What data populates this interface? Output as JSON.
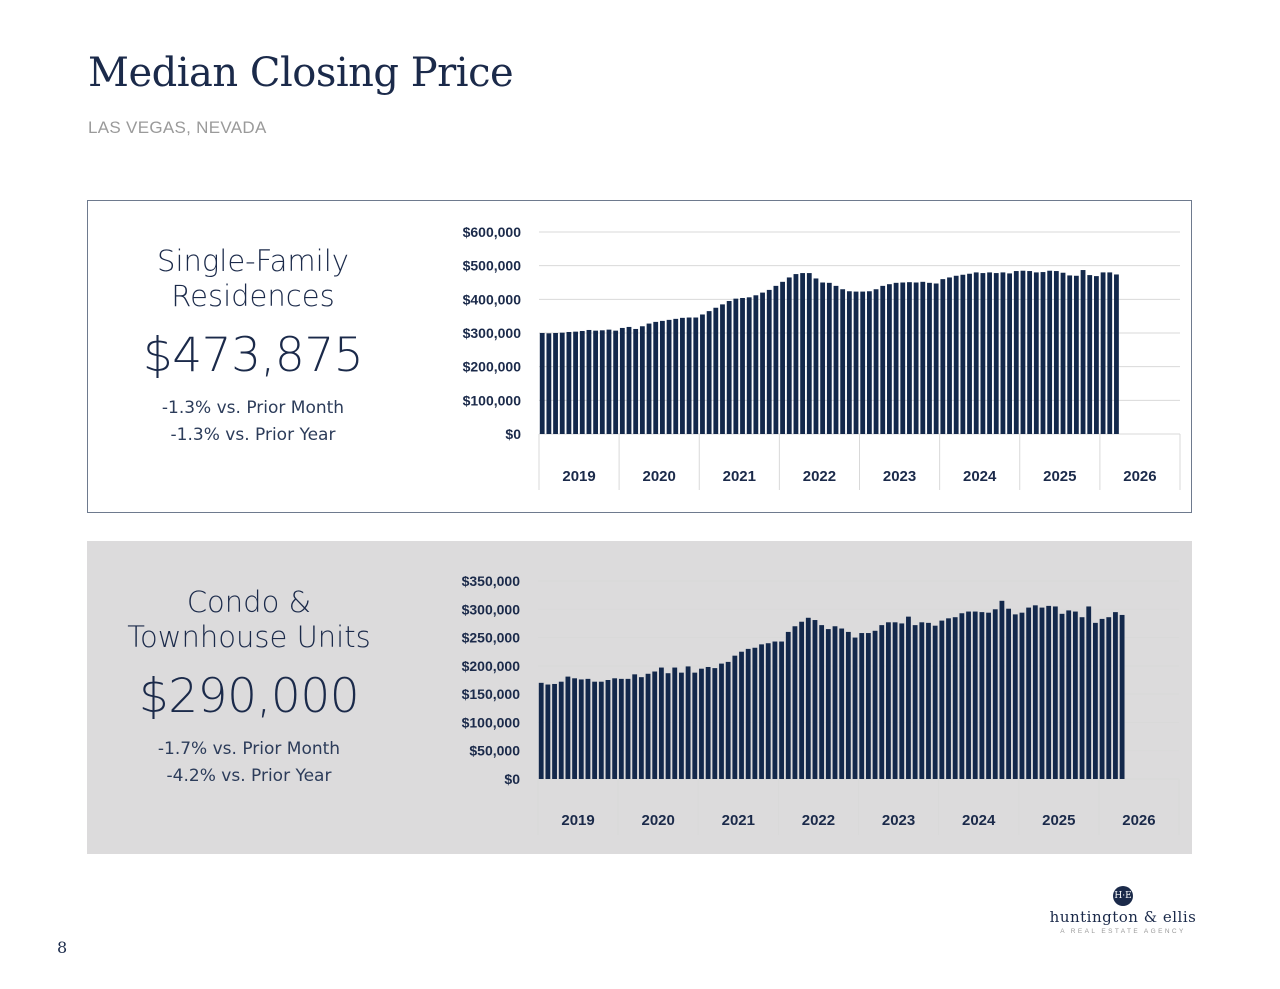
{
  "page": {
    "title": "Median Closing Price",
    "subtitle": "LAS VEGAS, NEVADA",
    "page_number": "8"
  },
  "logo": {
    "mark": "H·E",
    "name": "huntington & ellis",
    "tagline": "A REAL ESTATE AGENCY"
  },
  "colors": {
    "bar": "#13284b",
    "grid": "#d9d9d9",
    "navy": "#1b2a4a",
    "panel2_bg": "#dcdbdc"
  },
  "single_family": {
    "title_line1": "Single-Family",
    "title_line2": "Residences",
    "value": "$473,875",
    "change_month": "-1.3% vs. Prior Month",
    "change_year": "-1.3% vs. Prior Year"
  },
  "condo": {
    "title_line1": "Condo &",
    "title_line2": "Townhouse Units",
    "value": "$290,000",
    "change_month": "-1.7% vs. Prior Month",
    "change_year": "-4.2% vs. Prior Year"
  },
  "chart_data": [
    {
      "type": "bar",
      "name": "Single-Family Residences",
      "categories_years": [
        "2019",
        "2020",
        "2021",
        "2022",
        "2023",
        "2024",
        "2025",
        "2026"
      ],
      "x_start": "2019-01",
      "ylim": [
        0,
        600000
      ],
      "ticks": [
        "$0",
        "$100,000",
        "$200,000",
        "$300,000",
        "$400,000",
        "$500,000",
        "$600,000"
      ],
      "grid": true,
      "values": [
        300000,
        299000,
        300000,
        301000,
        303000,
        304000,
        306000,
        309000,
        307000,
        308000,
        310000,
        307000,
        315000,
        318000,
        312000,
        320000,
        328000,
        333000,
        336000,
        339000,
        342000,
        345000,
        346000,
        346000,
        355000,
        365000,
        375000,
        385000,
        395000,
        402000,
        404000,
        406000,
        412000,
        420000,
        428000,
        440000,
        452000,
        465000,
        475000,
        478000,
        478000,
        462000,
        450000,
        449000,
        440000,
        430000,
        424000,
        423000,
        423000,
        424000,
        430000,
        440000,
        445000,
        449000,
        450000,
        451000,
        450000,
        452000,
        449000,
        447000,
        460000,
        465000,
        470000,
        473000,
        476000,
        480000,
        478000,
        480000,
        478000,
        480000,
        477000,
        484000,
        485000,
        484000,
        480000,
        481000,
        485000,
        484000,
        479000,
        471000,
        470000,
        487000,
        472000,
        469000,
        480000,
        480000,
        473875
      ]
    },
    {
      "type": "bar",
      "name": "Condo & Townhouse Units",
      "categories_years": [
        "2019",
        "2020",
        "2021",
        "2022",
        "2023",
        "2024",
        "2025",
        "2026"
      ],
      "x_start": "2019-01",
      "ylim": [
        0,
        350000
      ],
      "ticks": [
        "$0",
        "$50,000",
        "$100,000",
        "$150,000",
        "$200,000",
        "$250,000",
        "$300,000",
        "$350,000"
      ],
      "grid": true,
      "values": [
        170000,
        167000,
        168000,
        172000,
        181000,
        178000,
        176000,
        177000,
        172000,
        172000,
        175000,
        178000,
        177000,
        177000,
        185000,
        180000,
        186000,
        190000,
        197000,
        187000,
        197000,
        188000,
        199000,
        188000,
        195000,
        198000,
        196000,
        204000,
        207000,
        218000,
        225000,
        230000,
        232000,
        238000,
        240000,
        243000,
        243000,
        260000,
        270000,
        278000,
        285000,
        281000,
        272000,
        265000,
        270000,
        266000,
        260000,
        250000,
        258000,
        258000,
        262000,
        272000,
        277000,
        277000,
        275000,
        287000,
        272000,
        277000,
        276000,
        271000,
        280000,
        284000,
        286000,
        293000,
        296000,
        296000,
        295000,
        294000,
        300000,
        315000,
        301000,
        291000,
        294000,
        303000,
        307000,
        303000,
        306000,
        305000,
        292000,
        298000,
        296000,
        286000,
        305000,
        276000,
        283000,
        286000,
        295000,
        290000
      ]
    }
  ]
}
